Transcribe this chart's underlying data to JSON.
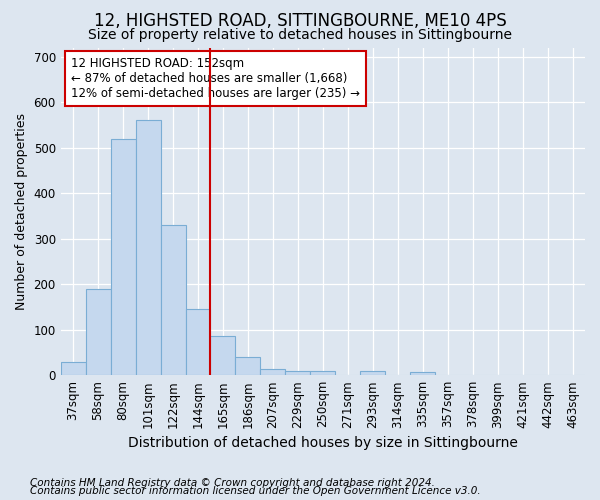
{
  "title": "12, HIGHSTED ROAD, SITTINGBOURNE, ME10 4PS",
  "subtitle": "Size of property relative to detached houses in Sittingbourne",
  "xlabel": "Distribution of detached houses by size in Sittingbourne",
  "ylabel": "Number of detached properties",
  "footnote1": "Contains HM Land Registry data © Crown copyright and database right 2024.",
  "footnote2": "Contains public sector information licensed under the Open Government Licence v3.0.",
  "categories": [
    "37sqm",
    "58sqm",
    "80sqm",
    "101sqm",
    "122sqm",
    "144sqm",
    "165sqm",
    "186sqm",
    "207sqm",
    "229sqm",
    "250sqm",
    "271sqm",
    "293sqm",
    "314sqm",
    "335sqm",
    "357sqm",
    "378sqm",
    "399sqm",
    "421sqm",
    "442sqm",
    "463sqm"
  ],
  "bar_values": [
    30,
    190,
    520,
    560,
    330,
    145,
    85,
    40,
    13,
    10,
    10,
    0,
    10,
    0,
    7,
    0,
    0,
    0,
    0,
    0,
    0
  ],
  "bar_color": "#c5d8ee",
  "bar_edge_color": "#7aadd4",
  "vline_x": 6,
  "vline_color": "#cc0000",
  "annotation_text": "12 HIGHSTED ROAD: 152sqm\n← 87% of detached houses are smaller (1,668)\n12% of semi-detached houses are larger (235) →",
  "annotation_box_color": "#ffffff",
  "annotation_box_edge": "#cc0000",
  "ylim": [
    0,
    720
  ],
  "yticks": [
    0,
    100,
    200,
    300,
    400,
    500,
    600,
    700
  ],
  "bg_color": "#dde6f0",
  "plot_bg_color": "#dde6f0",
  "title_fontsize": 12,
  "subtitle_fontsize": 10,
  "xlabel_fontsize": 10,
  "ylabel_fontsize": 9,
  "tick_fontsize": 8.5,
  "footnote_fontsize": 7.5
}
